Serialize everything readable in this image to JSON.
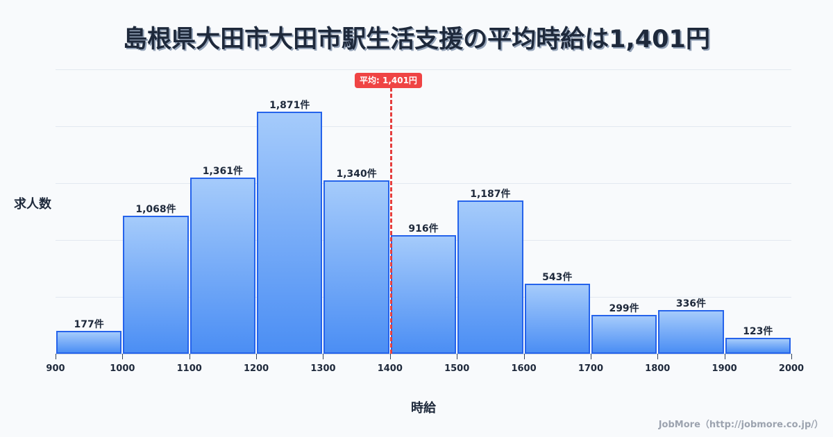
{
  "title": "島根県大田市大田市駅生活支援の平均時給は1,401円",
  "mean_badge": "平均: 1,401円",
  "ylabel": "求人数",
  "xlabel": "時給",
  "credit": "JobMore（http://jobmore.co.jp/）",
  "colors": {
    "bar_fill_top": "#a5cbfb",
    "bar_fill_bottom": "#4b8ef4",
    "bar_border": "#2563eb",
    "mean": "#ef4444",
    "text": "#1e293b"
  },
  "chart_data": {
    "type": "bar",
    "title": "島根県大田市大田市駅生活支援の平均時給は1,401円",
    "xlabel": "時給",
    "ylabel": "求人数",
    "bins": [
      [
        900,
        1000
      ],
      [
        1000,
        1100
      ],
      [
        1100,
        1200
      ],
      [
        1200,
        1300
      ],
      [
        1300,
        1400
      ],
      [
        1400,
        1500
      ],
      [
        1500,
        1600
      ],
      [
        1600,
        1700
      ],
      [
        1700,
        1800
      ],
      [
        1800,
        1900
      ],
      [
        1900,
        2000
      ]
    ],
    "categories": [
      "900-1000",
      "1000-1100",
      "1100-1200",
      "1200-1300",
      "1300-1400",
      "1400-1500",
      "1500-1600",
      "1600-1700",
      "1700-1800",
      "1800-1900",
      "1900-2000"
    ],
    "values": [
      177,
      1068,
      1361,
      1871,
      1340,
      916,
      1187,
      543,
      299,
      336,
      123
    ],
    "value_labels": [
      "177件",
      "1,068件",
      "1,361件",
      "1,871件",
      "1,340件",
      "916件",
      "1,187件",
      "543件",
      "299件",
      "336件",
      "123件"
    ],
    "x_ticks": [
      "900",
      "1000",
      "1100",
      "1200",
      "1300",
      "1400",
      "1500",
      "1600",
      "1700",
      "1800",
      "1900",
      "2000"
    ],
    "xlim": [
      900,
      2000
    ],
    "ylim": [
      0,
      2200
    ],
    "grid": true,
    "mean": 1401,
    "mean_label": "平均: 1,401円"
  }
}
